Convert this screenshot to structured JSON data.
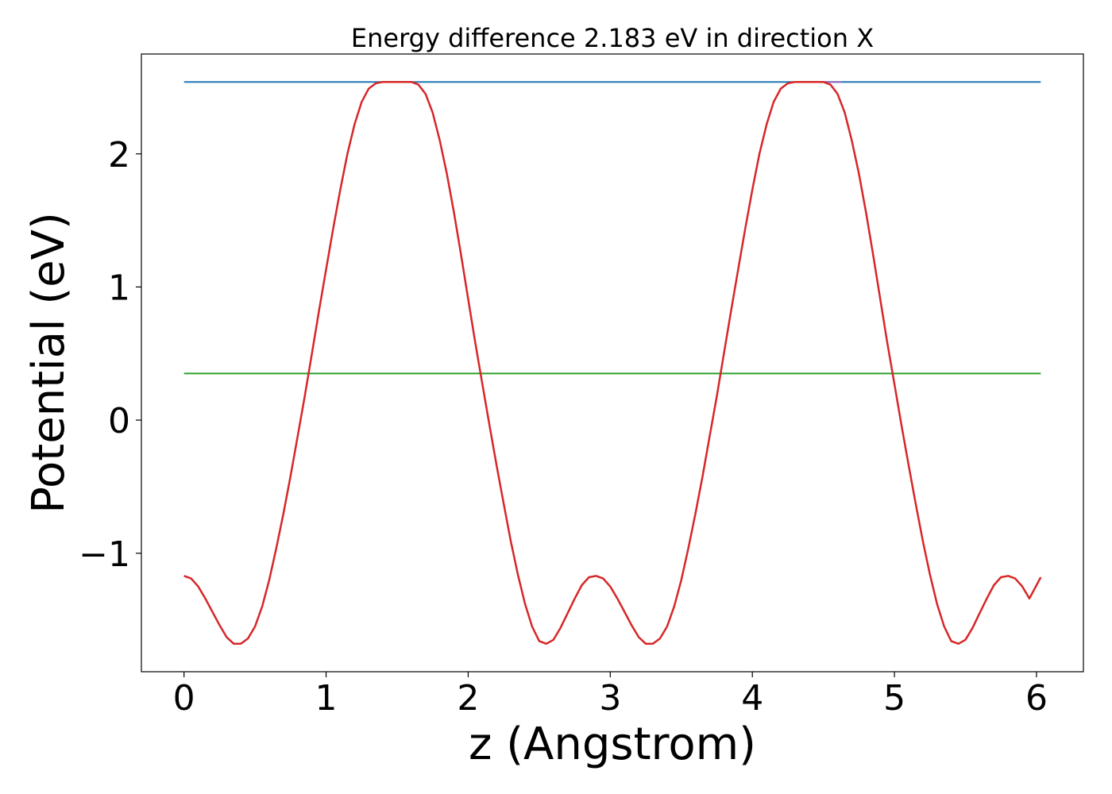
{
  "chart_data": {
    "type": "line",
    "title": "Energy difference 2.183 eV in direction X",
    "xlabel": "z (Angstrom)",
    "ylabel": "Potential (eV)",
    "xlim": [
      -0.3,
      6.33
    ],
    "ylim": [
      -1.89,
      2.75
    ],
    "xticks": [
      0,
      1,
      2,
      3,
      4,
      5,
      6
    ],
    "yticks": [
      -1,
      0,
      1,
      2
    ],
    "xtick_labels": [
      "0",
      "1",
      "2",
      "3",
      "4",
      "5",
      "6"
    ],
    "ytick_labels": [
      "−1",
      "0",
      "1",
      "2"
    ],
    "grid": false,
    "series": [
      {
        "color": "#1f77b4",
        "kind": "hline",
        "x": [
          0,
          6.03
        ],
        "y": [
          2.54,
          2.54
        ]
      },
      {
        "color": "#2ca02c",
        "kind": "hline",
        "x": [
          0,
          6.03
        ],
        "y": [
          0.35,
          0.35
        ]
      },
      {
        "color": "#9467bd",
        "kind": "segment",
        "x": [
          1.43,
          1.6
        ],
        "y": [
          2.54,
          2.54
        ]
      },
      {
        "color": "#9467bd",
        "kind": "segment",
        "x": [
          4.46,
          4.63
        ],
        "y": [
          2.54,
          2.54
        ]
      },
      {
        "color": "#d62728",
        "kind": "curve",
        "x": [
          0.0,
          0.05,
          0.1,
          0.15,
          0.2,
          0.25,
          0.3,
          0.35,
          0.4,
          0.45,
          0.5,
          0.55,
          0.6,
          0.65,
          0.7,
          0.75,
          0.8,
          0.85,
          0.9,
          0.95,
          1.0,
          1.05,
          1.1,
          1.15,
          1.2,
          1.25,
          1.3,
          1.35,
          1.4,
          1.45,
          1.5,
          1.55,
          1.6,
          1.65,
          1.7,
          1.75,
          1.8,
          1.85,
          1.9,
          1.95,
          2.0,
          2.05,
          2.1,
          2.15,
          2.2,
          2.25,
          2.3,
          2.35,
          2.4,
          2.45,
          2.5,
          2.55,
          2.6,
          2.65,
          2.7,
          2.75,
          2.8,
          2.85,
          2.9,
          2.95,
          3.0,
          3.05,
          3.1,
          3.15,
          3.2,
          3.25,
          3.3,
          3.35,
          3.4,
          3.45,
          3.5,
          3.55,
          3.6,
          3.65,
          3.7,
          3.75,
          3.8,
          3.85,
          3.9,
          3.95,
          4.0,
          4.05,
          4.1,
          4.15,
          4.2,
          4.25,
          4.3,
          4.35,
          4.4,
          4.45,
          4.5,
          4.55,
          4.6,
          4.65,
          4.7,
          4.75,
          4.8,
          4.85,
          4.9,
          4.95,
          5.0,
          5.05,
          5.1,
          5.15,
          5.2,
          5.25,
          5.3,
          5.35,
          5.4,
          5.45,
          5.5,
          5.55,
          5.6,
          5.65,
          5.7,
          5.75,
          5.8,
          5.85,
          5.9,
          5.95,
          6.03
        ],
        "y": [
          -1.17,
          -1.19,
          -1.25,
          -1.34,
          -1.44,
          -1.54,
          -1.63,
          -1.68,
          -1.68,
          -1.64,
          -1.55,
          -1.4,
          -1.2,
          -0.96,
          -0.7,
          -0.42,
          -0.12,
          0.18,
          0.5,
          0.82,
          1.13,
          1.44,
          1.73,
          2.0,
          2.22,
          2.39,
          2.49,
          2.53,
          2.54,
          2.54,
          2.54,
          2.54,
          2.54,
          2.52,
          2.45,
          2.31,
          2.1,
          1.85,
          1.56,
          1.24,
          0.91,
          0.58,
          0.27,
          -0.04,
          -0.34,
          -0.63,
          -0.91,
          -1.16,
          -1.38,
          -1.55,
          -1.66,
          -1.68,
          -1.65,
          -1.56,
          -1.45,
          -1.34,
          -1.24,
          -1.18,
          -1.17,
          -1.19,
          -1.25,
          -1.34,
          -1.44,
          -1.54,
          -1.63,
          -1.68,
          -1.68,
          -1.64,
          -1.55,
          -1.4,
          -1.2,
          -0.96,
          -0.7,
          -0.42,
          -0.12,
          0.18,
          0.5,
          0.82,
          1.13,
          1.44,
          1.73,
          2.0,
          2.22,
          2.39,
          2.49,
          2.53,
          2.54,
          2.54,
          2.54,
          2.54,
          2.54,
          2.52,
          2.45,
          2.31,
          2.1,
          1.85,
          1.56,
          1.24,
          0.91,
          0.58,
          0.27,
          -0.04,
          -0.34,
          -0.63,
          -0.91,
          -1.16,
          -1.38,
          -1.55,
          -1.66,
          -1.68,
          -1.65,
          -1.56,
          -1.45,
          -1.34,
          -1.24,
          -1.18,
          -1.17,
          -1.19,
          -1.25,
          -1.34,
          -1.18
        ]
      }
    ]
  }
}
